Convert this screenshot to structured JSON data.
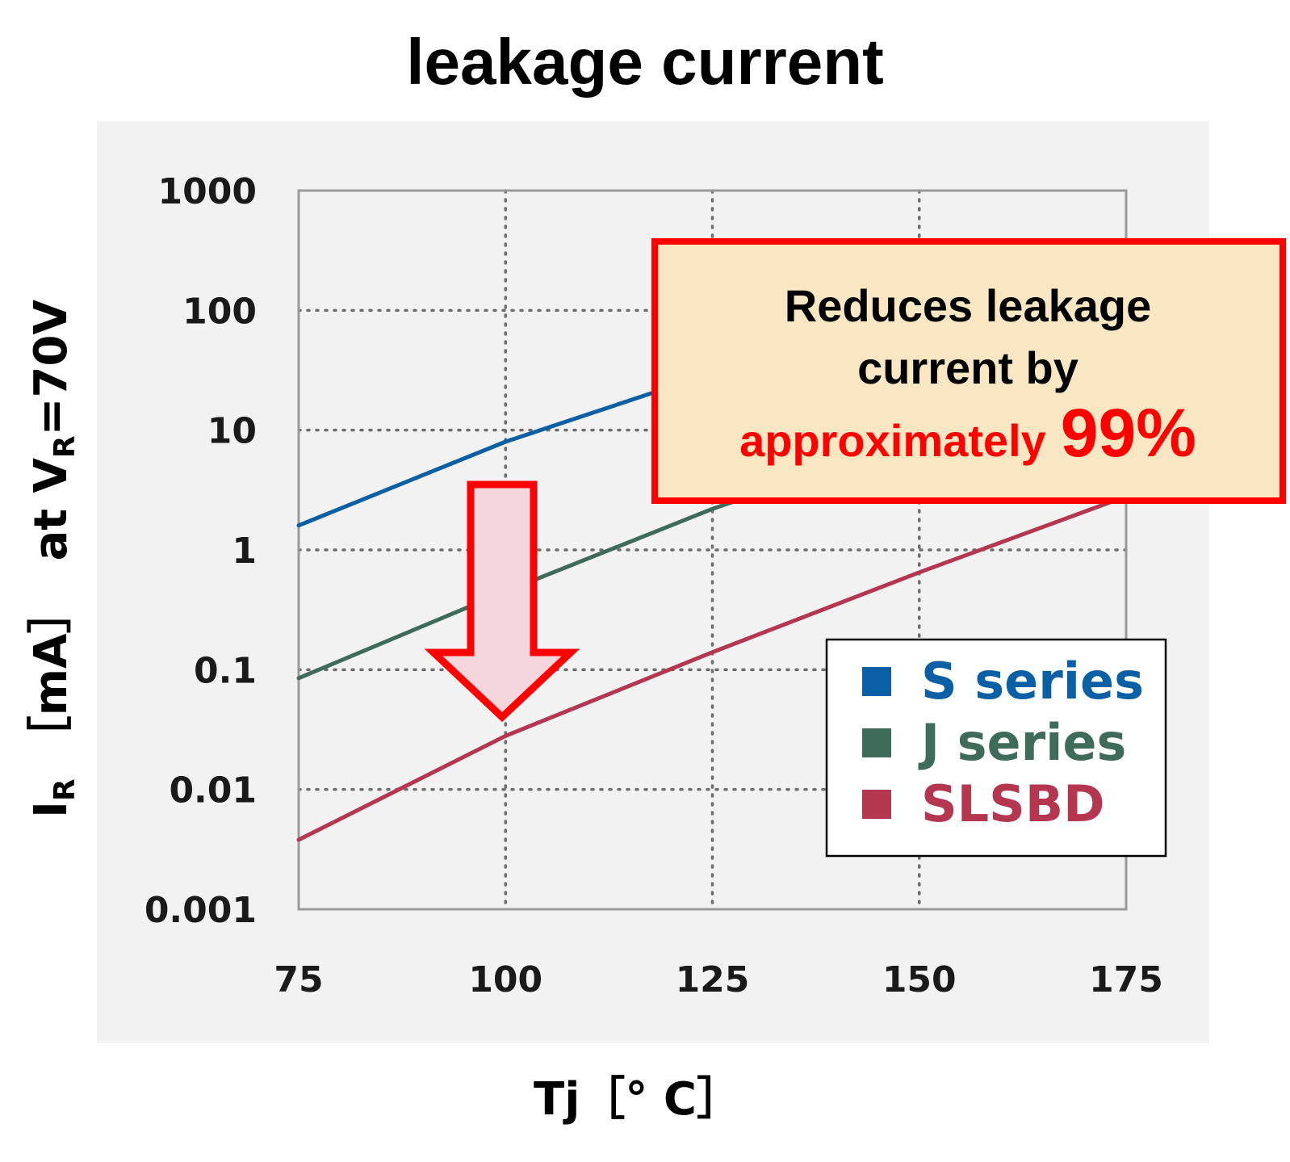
{
  "chart_data": {
    "type": "line",
    "title": "leakage current",
    "xlabel": "Tj［° C］",
    "ylabel": {
      "prefix": "I",
      "prefix_sub": "R",
      "unit": "［mA］",
      "at": "at V",
      "at_sub": "R",
      "at_suffix": "=70V"
    },
    "x_ticks": [
      75,
      100,
      125,
      150,
      175
    ],
    "y_ticks": [
      "1000",
      "100",
      "10",
      "1",
      "0.1",
      "0.01",
      "0.001"
    ],
    "y_scale": "log",
    "xlim": [
      75,
      175
    ],
    "ylim": [
      0.001,
      1000
    ],
    "grid": true,
    "legend_position": "bottom-right",
    "series": [
      {
        "name": "S series",
        "color": "#0b5fa5",
        "x": [
          75,
          100,
          125
        ],
        "y": [
          1.6,
          8,
          30
        ]
      },
      {
        "name": "J series",
        "color": "#3f6b5a",
        "x": [
          75,
          100,
          125,
          140
        ],
        "y": [
          0.085,
          0.45,
          2.2,
          5
        ]
      },
      {
        "name": "SLSBD",
        "color": "#b5364f",
        "x": [
          75,
          100,
          125,
          150,
          175
        ],
        "y": [
          0.0038,
          0.028,
          0.14,
          0.65,
          2.8
        ]
      }
    ],
    "annotations": {
      "callout_line1": "Reduces leakage",
      "callout_line2": "current by",
      "callout_word": "approximately",
      "callout_value": "99%",
      "arrow": "down-arrow"
    }
  }
}
